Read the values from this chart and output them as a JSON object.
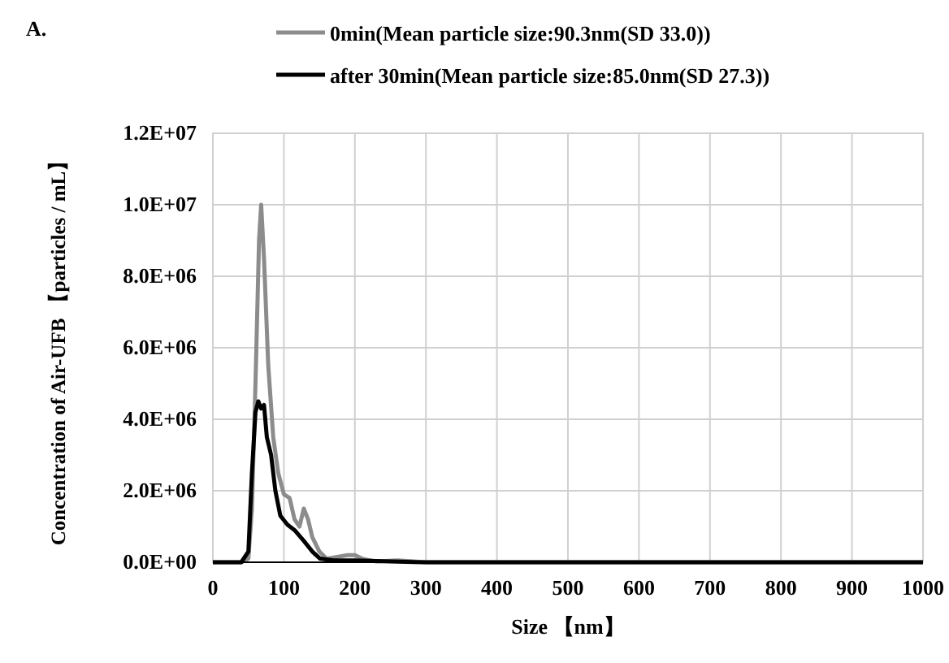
{
  "chart_data": {
    "type": "line",
    "title": "A.",
    "xlabel": "Size 【nm】",
    "ylabel": "Concentration of Air-UFB 【particles / mL】",
    "xlim": [
      0,
      1000
    ],
    "xticks": [
      0,
      100,
      200,
      300,
      400,
      500,
      600,
      700,
      800,
      900,
      1000
    ],
    "ylim": [
      0,
      12000000
    ],
    "yticks": [
      {
        "value": 0,
        "label": "0.0E+00"
      },
      {
        "value": 2000000,
        "label": "2.0E+06"
      },
      {
        "value": 4000000,
        "label": "4.0E+06"
      },
      {
        "value": 6000000,
        "label": "6.0E+06"
      },
      {
        "value": 8000000,
        "label": "8.0E+06"
      },
      {
        "value": 10000000,
        "label": "1.0E+07"
      },
      {
        "value": 12000000,
        "label": "1.2E+07"
      }
    ],
    "grid": true,
    "legend": "top",
    "marker": "none",
    "line_style": "solid",
    "series": [
      {
        "name": "0min(Mean particle size:90.3nm(SD 33.0))",
        "color": "#8c8c8c",
        "x": [
          0,
          40,
          50,
          55,
          60,
          65,
          68,
          72,
          78,
          85,
          92,
          100,
          108,
          115,
          122,
          128,
          134,
          140,
          150,
          160,
          175,
          190,
          200,
          210,
          230,
          260,
          300,
          1000
        ],
        "values": [
          0,
          0,
          100000,
          1500000,
          5000000,
          9000000,
          10000000,
          8500000,
          5500000,
          3500000,
          2500000,
          1900000,
          1800000,
          1200000,
          1000000,
          1500000,
          1200000,
          700000,
          300000,
          100000,
          150000,
          200000,
          200000,
          100000,
          20000,
          50000,
          0,
          0
        ]
      },
      {
        "name": "after 30min(Mean particle size:85.0nm(SD 27.3))",
        "color": "#000000",
        "x": [
          0,
          40,
          50,
          55,
          60,
          64,
          68,
          72,
          76,
          82,
          88,
          95,
          105,
          115,
          128,
          140,
          151,
          170,
          200,
          250,
          300,
          1000
        ],
        "values": [
          0,
          0,
          300000,
          2500000,
          4200000,
          4500000,
          4300000,
          4400000,
          3500000,
          3000000,
          2000000,
          1300000,
          1050000,
          900000,
          600000,
          300000,
          100000,
          50000,
          50000,
          20000,
          0,
          0
        ]
      }
    ]
  }
}
